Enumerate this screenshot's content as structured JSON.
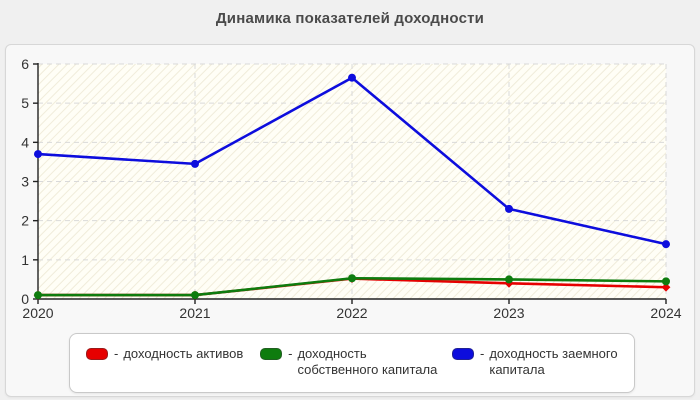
{
  "page": {
    "title": "Динамика показателей доходности"
  },
  "legend": {
    "separator": "-",
    "items": [
      {
        "label": "доходность активов",
        "color": "#e60000"
      },
      {
        "label": "доходность собственного капитала",
        "color": "#0e7c0e"
      },
      {
        "label": "доходность заемного капитала",
        "color": "#0d0ddd"
      }
    ]
  },
  "chart_data": {
    "type": "line",
    "title": "Динамика показателей доходности",
    "x": [
      "2020",
      "2021",
      "2022",
      "2023",
      "2024"
    ],
    "series": [
      {
        "name": "доходность активов",
        "color": "#e60000",
        "marker": "diamond",
        "values": [
          0.1,
          0.1,
          0.52,
          0.4,
          0.3
        ]
      },
      {
        "name": "доходность собственного капитала",
        "color": "#0e7c0e",
        "marker": "circle",
        "values": [
          0.1,
          0.1,
          0.53,
          0.5,
          0.45
        ]
      },
      {
        "name": "доходность заемного капитала",
        "color": "#0d0ddd",
        "marker": "circle",
        "values": [
          3.7,
          3.45,
          5.65,
          2.3,
          1.4
        ]
      }
    ],
    "xlabel": "",
    "ylabel": "",
    "ylim": [
      0,
      6
    ],
    "yticks": [
      0,
      1,
      2,
      3,
      4,
      5,
      6
    ],
    "grid": true,
    "legend_position": "bottom",
    "plot_bg": "#fffef6",
    "hatch_color": "#f0ecda",
    "grid_color": "#d9d9d9",
    "axis_color": "#222222",
    "tick_label_color": "#333333"
  }
}
